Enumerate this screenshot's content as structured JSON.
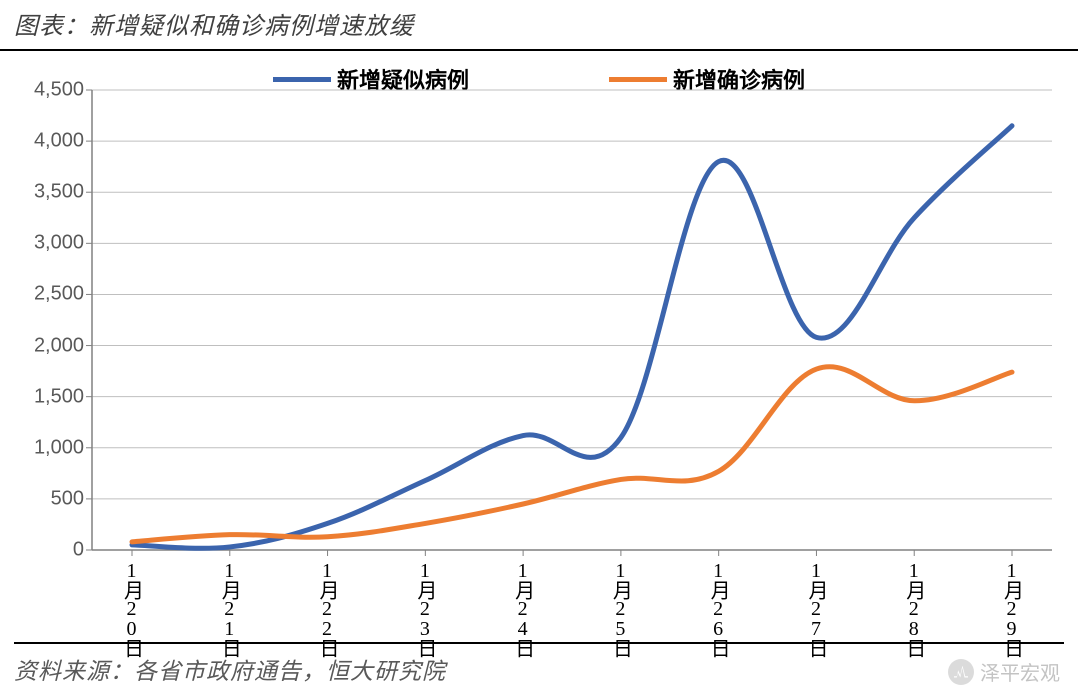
{
  "title": "图表：新增疑似和确诊病例增速放缓",
  "source": "资料来源：各省市政府通告，恒大研究院",
  "watermark": "泽平宏观",
  "chart": {
    "type": "line",
    "background_color": "#ffffff",
    "grid_color": "#bfbfbf",
    "axis_color": "#808080",
    "tick_color": "#808080",
    "ylim": [
      0,
      4500
    ],
    "ytick_step": 500,
    "y_tick_labels": [
      "0",
      "500",
      "1,000",
      "1,500",
      "2,000",
      "2,500",
      "3,000",
      "3,500",
      "4,000",
      "4,500"
    ],
    "x_categories": [
      "1月20日",
      "1月21日",
      "1月22日",
      "1月23日",
      "1月24日",
      "1月25日",
      "1月26日",
      "1月27日",
      "1月28日",
      "1月29日"
    ],
    "title_fontsize": 24,
    "label_fontsize": 20,
    "legend_fontsize": 22,
    "line_width": 5,
    "series": [
      {
        "name": "新增疑似病例",
        "color": "#3b64ad",
        "values": [
          50,
          30,
          260,
          680,
          1120,
          1100,
          3800,
          2080,
          3250,
          4150
        ]
      },
      {
        "name": "新增确诊病例",
        "color": "#ed7d31",
        "values": [
          80,
          150,
          130,
          260,
          450,
          690,
          770,
          1770,
          1460,
          1740
        ]
      }
    ]
  }
}
